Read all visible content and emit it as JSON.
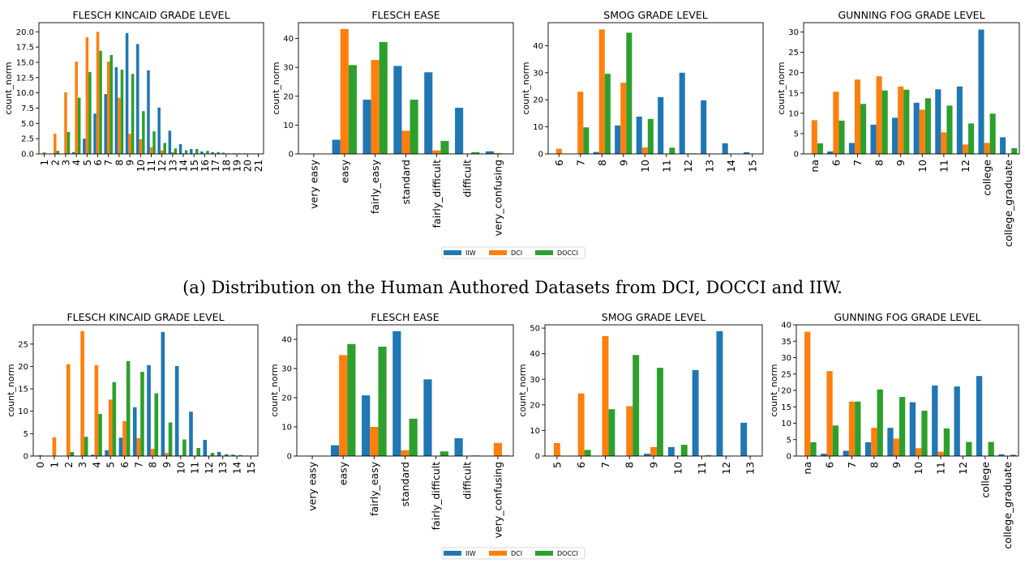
{
  "caption": "(a) Distribution on the Human Authored Datasets from DCI, DOCCI and IIW.",
  "legend": [
    {
      "name": "IIW",
      "color": "#1f77b4"
    },
    {
      "name": "DCI",
      "color": "#ff7f0e"
    },
    {
      "name": "DOCCI",
      "color": "#2ca02c"
    }
  ],
  "chart_data": [
    {
      "type": "bar",
      "row": 1,
      "title": "FLESCH KINCAID GRADE LEVEL",
      "ylabel": "count_norm",
      "categories": [
        "1",
        "2",
        "3",
        "4",
        "5",
        "6",
        "7",
        "8",
        "9",
        "10",
        "11",
        "12",
        "13",
        "14",
        "15",
        "16",
        "17",
        "18",
        "19",
        "20",
        "21"
      ],
      "ylim": [
        0,
        21.5
      ],
      "yticks": [
        0,
        2.5,
        5,
        7.5,
        10,
        12.5,
        15,
        17.5,
        20
      ],
      "ytick_labels": [
        "0.0",
        "2.5",
        "5.0",
        "7.5",
        "10.0",
        "12.5",
        "15.0",
        "17.5",
        "20.0"
      ],
      "series": [
        {
          "name": "IIW",
          "values": [
            0,
            0,
            0,
            0.3,
            2.5,
            6.6,
            9.8,
            14.2,
            19.8,
            18.0,
            13.7,
            7.6,
            3.8,
            1.6,
            0.8,
            0.4,
            0.3,
            0.2,
            0.1,
            0.1,
            0.05
          ]
        },
        {
          "name": "DCI",
          "values": [
            0.3,
            3.3,
            10.1,
            15.1,
            19.1,
            20.0,
            15.1,
            9.2,
            3.3,
            2.4,
            1.1,
            0.6,
            0.3,
            0.1,
            0.05,
            0,
            0,
            0,
            0,
            0,
            0
          ]
        },
        {
          "name": "DOCCI",
          "values": [
            0,
            0.5,
            3.6,
            9.2,
            13.4,
            16.9,
            16.2,
            13.8,
            13.1,
            7.0,
            3.7,
            1.8,
            0.9,
            0.6,
            0.8,
            0.5,
            0.3,
            0.1,
            0.1,
            0.05,
            0
          ]
        }
      ]
    },
    {
      "type": "bar",
      "row": 1,
      "title": "FLESCH EASE",
      "ylabel": "count_norm",
      "categories": [
        "very easy",
        "easy",
        "fairly_easy",
        "standard",
        "fairly_difficult",
        "difficult",
        "very_confusing"
      ],
      "ylim": [
        0,
        45.5
      ],
      "yticks": [
        0,
        10,
        20,
        30,
        40
      ],
      "ytick_labels": [
        "0",
        "10",
        "20",
        "30",
        "40"
      ],
      "series": [
        {
          "name": "IIW",
          "values": [
            0,
            4.9,
            18.8,
            30.5,
            28.3,
            16.0,
            0.9
          ]
        },
        {
          "name": "DCI",
          "values": [
            0,
            43.3,
            32.6,
            8.0,
            1.2,
            0,
            0.3
          ]
        },
        {
          "name": "DOCCI",
          "values": [
            0,
            30.8,
            38.8,
            18.8,
            4.5,
            0.6,
            0.1
          ]
        }
      ]
    },
    {
      "type": "bar",
      "row": 1,
      "title": "SMOG GRADE LEVEL",
      "ylabel": "count_norm",
      "categories": [
        "6",
        "7",
        "8",
        "9",
        "10",
        "11",
        "12",
        "13",
        "14",
        "15"
      ],
      "ylim": [
        0,
        48.5
      ],
      "yticks": [
        0,
        10,
        20,
        30,
        40
      ],
      "ytick_labels": [
        "0",
        "10",
        "20",
        "30",
        "40"
      ],
      "series": [
        {
          "name": "IIW",
          "values": [
            0,
            0,
            0.7,
            10.5,
            13.8,
            21.0,
            30.0,
            19.8,
            3.9,
            0.6
          ]
        },
        {
          "name": "DCI",
          "values": [
            1.9,
            23.0,
            46.0,
            26.3,
            2.4,
            0,
            0.2,
            0,
            0,
            0
          ]
        },
        {
          "name": "DOCCI",
          "values": [
            0,
            9.8,
            29.6,
            44.8,
            12.9,
            2.3,
            0.2,
            0,
            0,
            0
          ]
        }
      ]
    },
    {
      "type": "bar",
      "row": 1,
      "title": "GUNNING FOG GRADE LEVEL",
      "ylabel": "count_norm",
      "categories": [
        "na",
        "6",
        "7",
        "8",
        "9",
        "10",
        "11",
        "12",
        "college",
        "college_graduate"
      ],
      "ylim": [
        0,
        32.3
      ],
      "yticks": [
        0,
        5,
        10,
        15,
        20,
        25,
        30
      ],
      "ytick_labels": [
        "0",
        "5",
        "10",
        "15",
        "20",
        "25",
        "30"
      ],
      "series": [
        {
          "name": "IIW",
          "values": [
            0,
            0.6,
            2.7,
            7.2,
            8.9,
            12.6,
            15.9,
            16.6,
            30.6,
            4.1
          ]
        },
        {
          "name": "DCI",
          "values": [
            8.3,
            15.3,
            18.3,
            19.1,
            16.6,
            10.9,
            5.3,
            2.3,
            2.7,
            0
          ]
        },
        {
          "name": "DOCCI",
          "values": [
            2.6,
            8.2,
            12.3,
            15.6,
            15.8,
            13.7,
            11.9,
            7.5,
            9.9,
            1.4
          ]
        }
      ]
    },
    {
      "type": "bar",
      "row": 2,
      "title": "FLESCH KINCAID GRADE LEVEL",
      "ylabel": "count_norm",
      "categories": [
        "0",
        "1",
        "2",
        "3",
        "4",
        "5",
        "6",
        "7",
        "8",
        "9",
        "10",
        "11",
        "12",
        "13",
        "14",
        "15"
      ],
      "ylim": [
        0,
        29.3
      ],
      "yticks": [
        0,
        5,
        10,
        15,
        20,
        25
      ],
      "ytick_labels": [
        "0",
        "5",
        "10",
        "15",
        "20",
        "25"
      ],
      "series": [
        {
          "name": "IIW",
          "values": [
            0,
            0,
            0,
            0,
            0.3,
            1.3,
            4.1,
            10.9,
            20.3,
            27.7,
            20.1,
            9.9,
            3.6,
            0.9,
            0.3,
            0.1
          ]
        },
        {
          "name": "DCI",
          "values": [
            0.2,
            4.2,
            20.5,
            27.9,
            20.3,
            12.6,
            7.8,
            4.0,
            1.6,
            0.7,
            0.2,
            0.1,
            0,
            0,
            0,
            0
          ]
        },
        {
          "name": "DOCCI",
          "values": [
            0,
            0,
            0.9,
            4.3,
            9.4,
            16.5,
            21.2,
            18.8,
            14.0,
            7.5,
            3.7,
            1.8,
            0.7,
            0.4,
            0.2,
            0.1
          ]
        }
      ]
    },
    {
      "type": "bar",
      "row": 2,
      "title": "FLESCH EASE",
      "ylabel": "count_norm",
      "categories": [
        "very easy",
        "easy",
        "fairly_easy",
        "standard",
        "fairly_difficult",
        "difficult",
        "very_confusing"
      ],
      "ylim": [
        0,
        45
      ],
      "yticks": [
        0,
        10,
        20,
        30,
        40
      ],
      "ytick_labels": [
        "0",
        "10",
        "20",
        "30",
        "40"
      ],
      "series": [
        {
          "name": "IIW",
          "values": [
            0,
            3.7,
            20.8,
            42.8,
            26.3,
            6.1,
            0
          ]
        },
        {
          "name": "DCI",
          "values": [
            0,
            34.6,
            10.0,
            2.0,
            0,
            0,
            4.5
          ]
        },
        {
          "name": "DOCCI",
          "values": [
            0,
            38.4,
            37.5,
            12.8,
            1.6,
            0.2,
            0.2
          ]
        }
      ]
    },
    {
      "type": "bar",
      "row": 2,
      "title": "SMOG GRADE LEVEL",
      "ylabel": "count_norm",
      "categories": [
        "5",
        "6",
        "7",
        "8",
        "9",
        "10",
        "11",
        "12",
        "13"
      ],
      "ylim": [
        0,
        51.3
      ],
      "yticks": [
        0,
        10,
        20,
        30,
        40,
        50
      ],
      "ytick_labels": [
        "0",
        "10",
        "20",
        "30",
        "40",
        "50"
      ],
      "series": [
        {
          "name": "IIW",
          "values": [
            0,
            0,
            0,
            0,
            0.9,
            3.5,
            33.6,
            48.8,
            13.0
          ]
        },
        {
          "name": "DCI",
          "values": [
            5.1,
            24.5,
            46.9,
            19.5,
            3.5,
            0,
            0,
            0,
            0
          ]
        },
        {
          "name": "DOCCI",
          "values": [
            0,
            2.4,
            18.3,
            39.5,
            34.5,
            4.4,
            0.3,
            0,
            0
          ]
        }
      ]
    },
    {
      "type": "bar",
      "row": 2,
      "title": "GUNNING FOG GRADE LEVEL",
      "ylabel": "count_norm",
      "categories": [
        "na",
        "6",
        "7",
        "8",
        "9",
        "10",
        "11",
        "12",
        "college",
        "college_graduate"
      ],
      "ylim": [
        0,
        40
      ],
      "yticks": [
        0,
        5,
        10,
        15,
        20,
        25,
        30,
        35,
        40
      ],
      "ytick_labels": [
        "0",
        "5",
        "10",
        "15",
        "20",
        "25",
        "30",
        "35",
        "40"
      ],
      "series": [
        {
          "name": "IIW",
          "values": [
            0,
            0.7,
            1.6,
            4.2,
            8.6,
            16.4,
            21.5,
            21.2,
            24.4,
            0.5
          ]
        },
        {
          "name": "DCI",
          "values": [
            37.9,
            25.9,
            16.6,
            8.6,
            5.3,
            2.4,
            1.3,
            0.1,
            0,
            0
          ]
        },
        {
          "name": "DOCCI",
          "values": [
            4.2,
            9.3,
            16.6,
            20.3,
            18.0,
            13.8,
            8.4,
            4.3,
            4.3,
            0.4
          ]
        }
      ]
    }
  ]
}
